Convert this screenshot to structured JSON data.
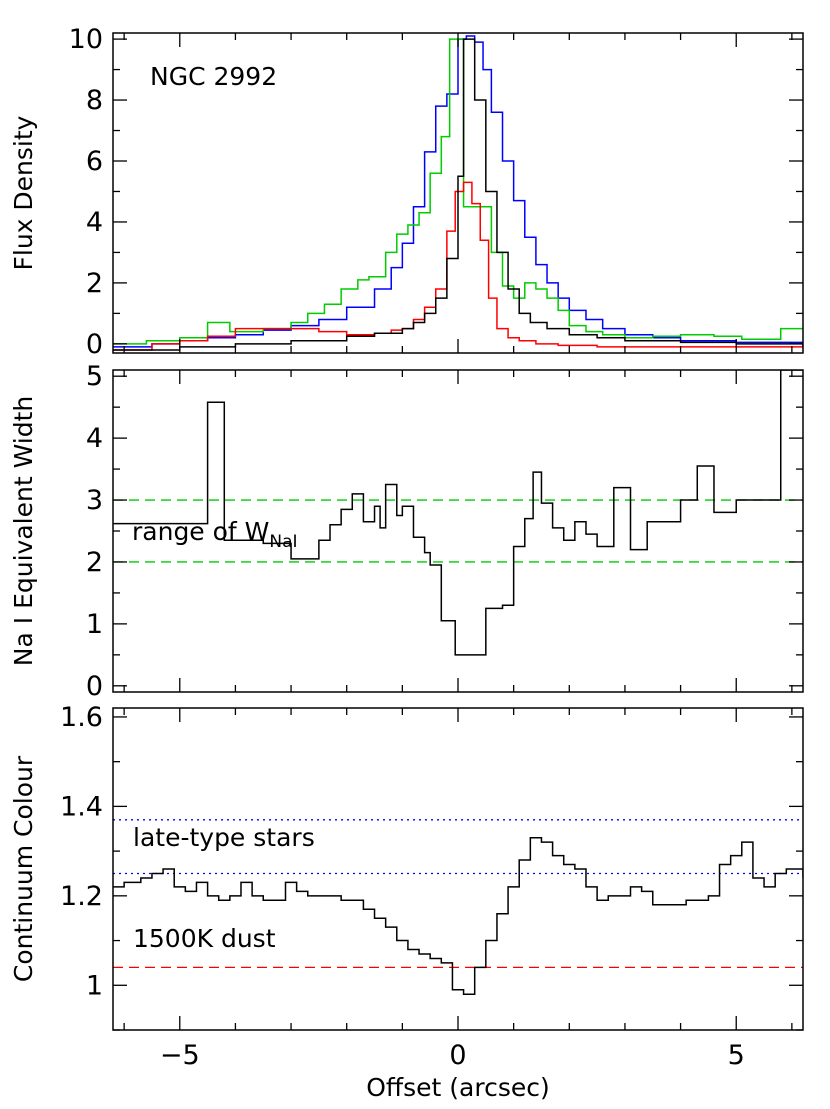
{
  "chart_data": [
    {
      "type": "line",
      "title": "",
      "annotation": "NGC 2992",
      "ylabel": "Flux Density",
      "xlim": [
        -6.2,
        6.2
      ],
      "ylim": [
        -0.3,
        10.2
      ],
      "yticks": [
        0,
        2,
        4,
        6,
        8,
        10
      ],
      "xticks": [
        -5,
        0,
        5
      ],
      "grid": false,
      "series": [
        {
          "color": "#0000ff",
          "step": true,
          "x": [
            -6.2,
            -5.5,
            -5.0,
            -4.5,
            -4.0,
            -3.5,
            -3.0,
            -2.5,
            -2.0,
            -1.5,
            -1.2,
            -1.0,
            -0.8,
            -0.6,
            -0.4,
            -0.2,
            0.0,
            0.15,
            0.3,
            0.45,
            0.6,
            0.8,
            1.0,
            1.2,
            1.4,
            1.6,
            1.8,
            2.0,
            2.3,
            2.6,
            3.0,
            3.5,
            4.0,
            5.0,
            6.2
          ],
          "y": [
            -0.1,
            0.0,
            0.1,
            0.2,
            0.3,
            0.45,
            0.6,
            0.8,
            1.2,
            1.8,
            2.5,
            3.3,
            4.5,
            6.3,
            7.8,
            8.2,
            10.0,
            10.1,
            9.9,
            9.0,
            7.6,
            6.0,
            4.7,
            3.5,
            2.6,
            2.0,
            1.5,
            1.1,
            0.8,
            0.5,
            0.3,
            0.2,
            0.1,
            0.05,
            -0.1
          ]
        },
        {
          "color": "#00cc00",
          "step": true,
          "x": [
            -6.2,
            -5.6,
            -5.0,
            -4.5,
            -4.1,
            -3.5,
            -3.0,
            -2.7,
            -2.4,
            -2.1,
            -1.8,
            -1.6,
            -1.3,
            -1.1,
            -0.9,
            -0.7,
            -0.5,
            -0.3,
            -0.15,
            0.0,
            0.1,
            0.6,
            0.8,
            1.0,
            1.2,
            1.4,
            1.6,
            1.8,
            2.0,
            2.3,
            2.6,
            3.0,
            3.5,
            4.0,
            4.6,
            5.1,
            5.8,
            6.2
          ],
          "y": [
            0.0,
            0.1,
            0.2,
            0.7,
            0.4,
            0.5,
            0.7,
            1.0,
            1.3,
            1.8,
            2.1,
            2.2,
            3.0,
            3.6,
            3.9,
            4.3,
            5.6,
            6.8,
            10.0,
            10.0,
            4.5,
            3.0,
            1.9,
            1.5,
            2.0,
            1.8,
            1.5,
            1.1,
            0.6,
            0.4,
            0.3,
            0.2,
            0.25,
            0.3,
            0.25,
            0.15,
            0.5,
            0.5
          ]
        },
        {
          "color": "#ff0000",
          "step": true,
          "x": [
            -6.2,
            -5.5,
            -5.0,
            -4.5,
            -4.0,
            -3.5,
            -3.0,
            -2.5,
            -2.0,
            -1.5,
            -1.2,
            -1.0,
            -0.8,
            -0.6,
            -0.4,
            -0.2,
            -0.05,
            0.1,
            0.25,
            0.4,
            0.55,
            0.7,
            0.9,
            1.1,
            1.4,
            1.8,
            2.5,
            3.5,
            4.5,
            5.5,
            6.2
          ],
          "y": [
            -0.2,
            0.0,
            0.1,
            0.25,
            0.5,
            0.5,
            0.5,
            0.4,
            0.3,
            0.35,
            0.45,
            0.5,
            0.8,
            1.2,
            1.8,
            3.7,
            5.0,
            5.3,
            4.6,
            3.4,
            1.5,
            0.5,
            0.2,
            0.1,
            0.0,
            -0.05,
            -0.1,
            -0.1,
            -0.1,
            -0.1,
            -0.1
          ]
        },
        {
          "color": "#000000",
          "step": true,
          "x": [
            -6.2,
            -5.0,
            -4.0,
            -3.0,
            -2.0,
            -1.5,
            -1.0,
            -0.8,
            -0.6,
            -0.4,
            -0.2,
            0.0,
            0.1,
            0.3,
            0.5,
            0.7,
            0.9,
            1.1,
            1.3,
            1.6,
            2.0,
            2.5,
            3.0,
            4.0,
            5.0,
            6.2
          ],
          "y": [
            -0.2,
            -0.1,
            0.0,
            0.1,
            0.25,
            0.35,
            0.5,
            0.7,
            1.0,
            1.5,
            2.8,
            5.5,
            10.0,
            8.0,
            5.0,
            3.0,
            1.8,
            1.0,
            0.7,
            0.5,
            0.3,
            0.2,
            0.1,
            0.05,
            0.0,
            -0.1
          ]
        }
      ]
    },
    {
      "type": "line",
      "title": "",
      "ylabel": "Na I Equivalent Width",
      "annotation": "range of W",
      "annotation_sub": "NaI",
      "xlim": [
        -6.2,
        6.2
      ],
      "ylim": [
        -0.1,
        5.1
      ],
      "yticks": [
        0,
        1,
        2,
        3,
        4,
        5
      ],
      "xticks": [
        -5,
        0,
        5
      ],
      "grid": false,
      "reference_lines": [
        {
          "y": 3.0,
          "color": "#00cc00",
          "style": "dashed"
        },
        {
          "y": 2.0,
          "color": "#00cc00",
          "style": "dashed"
        }
      ],
      "series": [
        {
          "color": "#000000",
          "step": true,
          "x": [
            -6.2,
            -4.5,
            -4.2,
            -3.5,
            -3.0,
            -2.5,
            -2.3,
            -2.1,
            -1.9,
            -1.7,
            -1.5,
            -1.4,
            -1.3,
            -1.1,
            -1.0,
            -0.8,
            -0.6,
            -0.5,
            -0.3,
            -0.05,
            0.5,
            0.8,
            1.0,
            1.2,
            1.35,
            1.5,
            1.7,
            1.9,
            2.1,
            2.3,
            2.5,
            2.8,
            3.1,
            3.4,
            4.0,
            4.3,
            4.6,
            5.0,
            5.5,
            5.8,
            6.2
          ],
          "y": [
            2.62,
            4.58,
            2.35,
            2.3,
            2.05,
            2.35,
            2.6,
            2.85,
            3.1,
            2.65,
            2.9,
            2.55,
            3.25,
            2.75,
            2.9,
            2.4,
            2.15,
            1.95,
            1.05,
            0.5,
            1.25,
            1.3,
            2.25,
            2.7,
            3.45,
            2.95,
            2.55,
            2.35,
            2.65,
            2.45,
            2.25,
            3.2,
            2.2,
            2.65,
            3.0,
            3.55,
            2.8,
            3.0,
            3.0,
            5.1,
            5.1
          ]
        }
      ]
    },
    {
      "type": "line",
      "title": "",
      "xlabel": "Offset (arcsec)",
      "ylabel": "Continuum Colour",
      "annotations": [
        "late-type stars",
        "1500K dust"
      ],
      "xlim": [
        -6.2,
        6.2
      ],
      "ylim": [
        0.9,
        1.62
      ],
      "yticks": [
        1.0,
        1.2,
        1.4,
        1.6
      ],
      "xticks": [
        -5,
        0,
        5
      ],
      "grid": false,
      "reference_lines": [
        {
          "y": 1.37,
          "color": "#0000ff",
          "style": "dotted"
        },
        {
          "y": 1.25,
          "color": "#0000ff",
          "style": "dotted"
        },
        {
          "y": 1.04,
          "color": "#ff0000",
          "style": "dashed"
        }
      ],
      "series": [
        {
          "color": "#000000",
          "step": true,
          "x": [
            -6.2,
            -6.0,
            -5.7,
            -5.5,
            -5.3,
            -5.1,
            -4.9,
            -4.7,
            -4.5,
            -4.3,
            -4.1,
            -3.9,
            -3.7,
            -3.5,
            -3.3,
            -3.1,
            -2.9,
            -2.7,
            -2.5,
            -2.3,
            -2.1,
            -1.9,
            -1.7,
            -1.5,
            -1.3,
            -1.1,
            -0.9,
            -0.7,
            -0.5,
            -0.3,
            -0.1,
            0.1,
            0.3,
            0.5,
            0.7,
            0.9,
            1.1,
            1.3,
            1.5,
            1.7,
            1.9,
            2.1,
            2.3,
            2.5,
            2.7,
            2.9,
            3.1,
            3.3,
            3.5,
            3.7,
            3.9,
            4.1,
            4.3,
            4.5,
            4.7,
            4.9,
            5.1,
            5.3,
            5.5,
            5.7,
            5.9,
            6.2
          ],
          "y": [
            1.22,
            1.23,
            1.24,
            1.25,
            1.26,
            1.22,
            1.21,
            1.23,
            1.2,
            1.19,
            1.2,
            1.23,
            1.2,
            1.19,
            1.19,
            1.23,
            1.21,
            1.2,
            1.2,
            1.2,
            1.19,
            1.19,
            1.17,
            1.15,
            1.13,
            1.1,
            1.08,
            1.07,
            1.06,
            1.05,
            0.99,
            0.98,
            1.04,
            1.1,
            1.16,
            1.22,
            1.28,
            1.33,
            1.32,
            1.29,
            1.27,
            1.26,
            1.22,
            1.19,
            1.2,
            1.2,
            1.22,
            1.21,
            1.18,
            1.18,
            1.18,
            1.19,
            1.19,
            1.2,
            1.27,
            1.29,
            1.32,
            1.24,
            1.22,
            1.25,
            1.26,
            1.24
          ]
        }
      ]
    }
  ],
  "xtick_labels": [
    "−5",
    "0",
    "5"
  ]
}
